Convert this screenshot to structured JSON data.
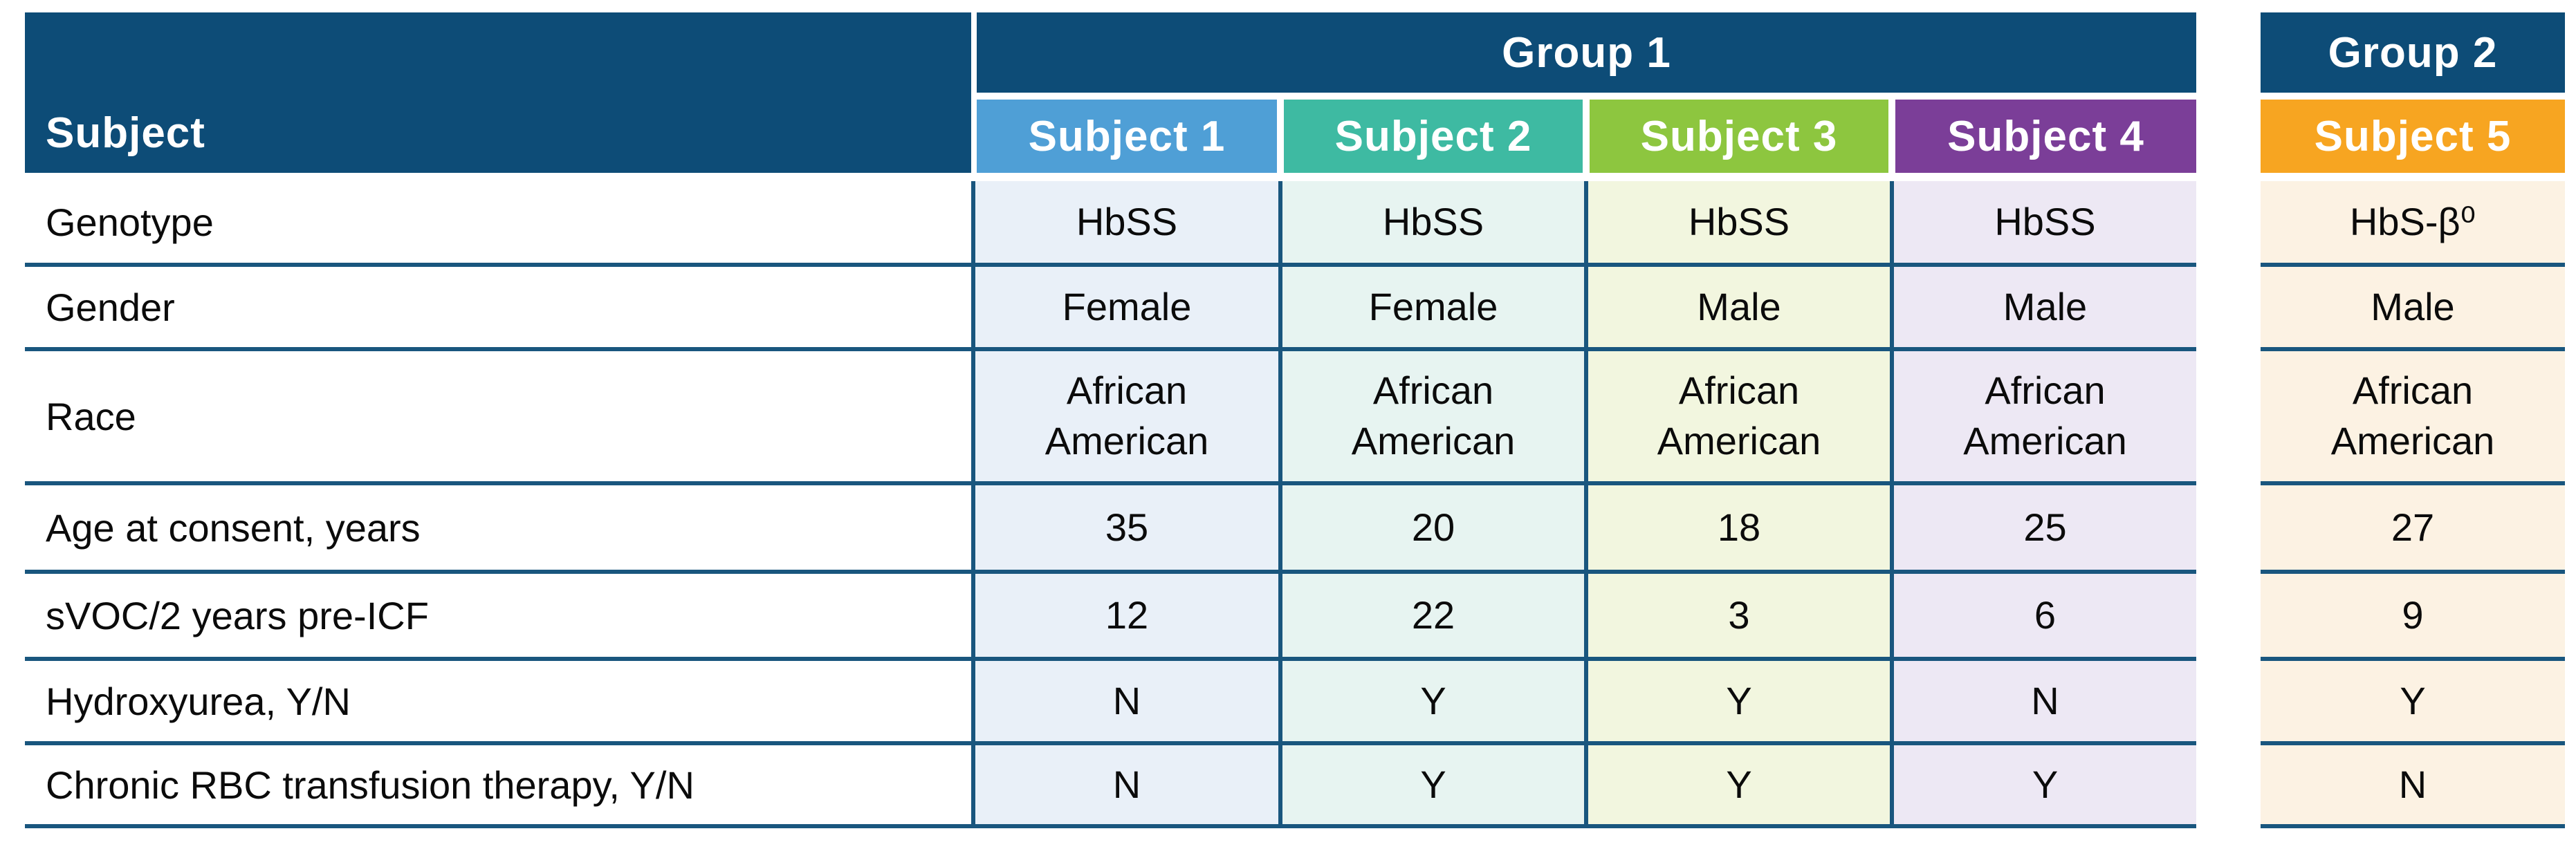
{
  "table": {
    "corner_header": "Subject",
    "groups": [
      {
        "label": "Group 1",
        "subjects": [
          "Subject 1",
          "Subject 2",
          "Subject 3",
          "Subject 4"
        ]
      },
      {
        "label": "Group 2",
        "subjects": [
          "Subject 5"
        ]
      }
    ],
    "rows": [
      {
        "label": "Genotype",
        "values": [
          "HbSS",
          "HbSS",
          "HbSS",
          "HbSS",
          "HbS-β⁰"
        ]
      },
      {
        "label": "Gender",
        "values": [
          "Female",
          "Female",
          "Male",
          "Male",
          "Male"
        ]
      },
      {
        "label": "Race",
        "values": [
          "African\nAmerican",
          "African\nAmerican",
          "African\nAmerican",
          "African\nAmerican",
          "African\nAmerican"
        ]
      },
      {
        "label": "Age at consent, years",
        "values": [
          "35",
          "20",
          "18",
          "25",
          "27"
        ]
      },
      {
        "label": "sVOC/2 years pre-ICF",
        "values": [
          "12",
          "22",
          "3",
          "6",
          "9"
        ]
      },
      {
        "label": "Hydroxyurea, Y/N",
        "values": [
          "N",
          "Y",
          "Y",
          "N",
          "Y"
        ]
      },
      {
        "label": "Chronic RBC transfusion therapy, Y/N",
        "values": [
          "N",
          "Y",
          "Y",
          "Y",
          "N"
        ]
      }
    ],
    "colors": {
      "header_navy": "#0D4C77",
      "grid_line": "#19567E",
      "subject_1": "#4F9FD6",
      "subject_2": "#3EBAA2",
      "subject_3": "#8DC63F",
      "subject_4": "#7B3E98",
      "subject_5": "#F7A521",
      "subject_1_tint": "#E9F0F8",
      "subject_2_tint": "#E7F4F1",
      "subject_3_tint": "#F2F6DF",
      "subject_4_tint": "#EDE8F4",
      "subject_5_tint": "#FCF2E3"
    }
  }
}
